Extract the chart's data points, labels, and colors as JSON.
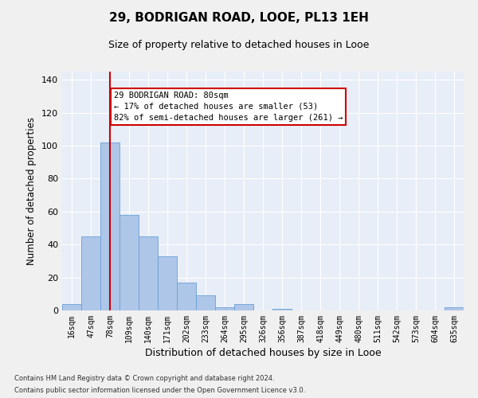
{
  "title": "29, BODRIGAN ROAD, LOOE, PL13 1EH",
  "subtitle": "Size of property relative to detached houses in Looe",
  "xlabel": "Distribution of detached houses by size in Looe",
  "ylabel": "Number of detached properties",
  "categories": [
    "16sqm",
    "47sqm",
    "78sqm",
    "109sqm",
    "140sqm",
    "171sqm",
    "202sqm",
    "233sqm",
    "264sqm",
    "295sqm",
    "326sqm",
    "356sqm",
    "387sqm",
    "418sqm",
    "449sqm",
    "480sqm",
    "511sqm",
    "542sqm",
    "573sqm",
    "604sqm",
    "635sqm"
  ],
  "values": [
    4,
    45,
    102,
    58,
    45,
    33,
    17,
    9,
    2,
    4,
    0,
    1,
    0,
    0,
    0,
    0,
    0,
    0,
    0,
    0,
    2
  ],
  "bar_color": "#aec6e8",
  "bar_edgecolor": "#6a9fd8",
  "background_color": "#e8eef7",
  "grid_color": "#ffffff",
  "fig_background": "#f0f0f0",
  "red_line_index": 2,
  "red_line_color": "#cc0000",
  "annotation_line1": "29 BODRIGAN ROAD: 80sqm",
  "annotation_line2": "← 17% of detached houses are smaller (53)",
  "annotation_line3": "82% of semi-detached houses are larger (261) →",
  "annotation_box_edgecolor": "#cc0000",
  "ylim": [
    0,
    145
  ],
  "yticks": [
    0,
    20,
    40,
    60,
    80,
    100,
    120,
    140
  ],
  "footnote1": "Contains HM Land Registry data © Crown copyright and database right 2024.",
  "footnote2": "Contains public sector information licensed under the Open Government Licence v3.0."
}
